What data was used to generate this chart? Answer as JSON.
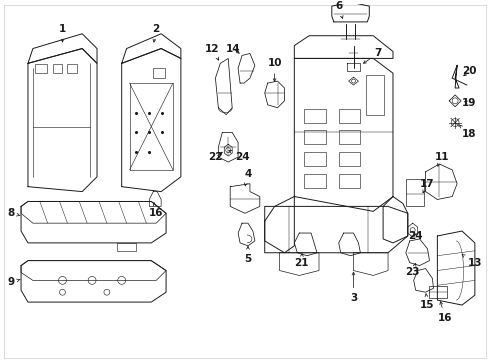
{
  "background_color": "#ffffff",
  "line_color": "#1a1a1a",
  "figsize": [
    4.9,
    3.6
  ],
  "dpi": 100,
  "border_color": "#cccccc",
  "label_fontsize": 7.5,
  "label_fontweight": "bold"
}
